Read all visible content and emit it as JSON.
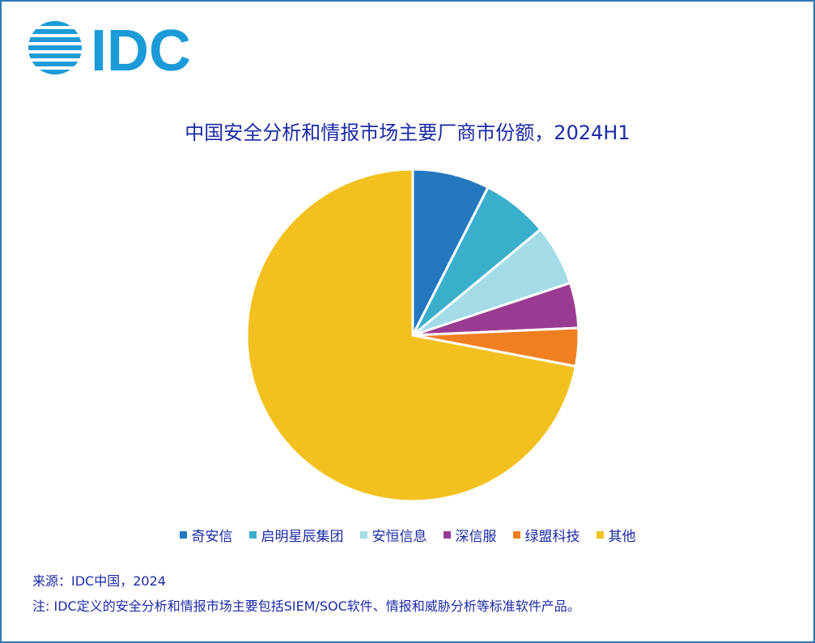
{
  "logo": {
    "text": "IDC",
    "color": "#1a9bd7"
  },
  "chart_data": {
    "type": "pie",
    "title": "中国安全分析和情报市场主要厂商市份额，2024H1",
    "legend_position": "bottom",
    "slices": [
      {
        "label": "奇安信",
        "value": 7.5,
        "color": "#2378be"
      },
      {
        "label": "启明星辰集团",
        "value": 6.5,
        "color": "#3aafcb"
      },
      {
        "label": "安恒信息",
        "value": 5.9,
        "color": "#a3dbe7"
      },
      {
        "label": "深信服",
        "value": 4.4,
        "color": "#9a3b92"
      },
      {
        "label": "绿盟科技",
        "value": 3.7,
        "color": "#f07f22"
      },
      {
        "label": "其他",
        "value": 72.0,
        "color": "#f2c120"
      }
    ]
  },
  "notes": {
    "source": "来源：IDC中国，2024",
    "footnote": "注: IDC定义的安全分析和情报市场主要包括SIEM/SOC软件、情报和威胁分析等标准软件产品。"
  }
}
